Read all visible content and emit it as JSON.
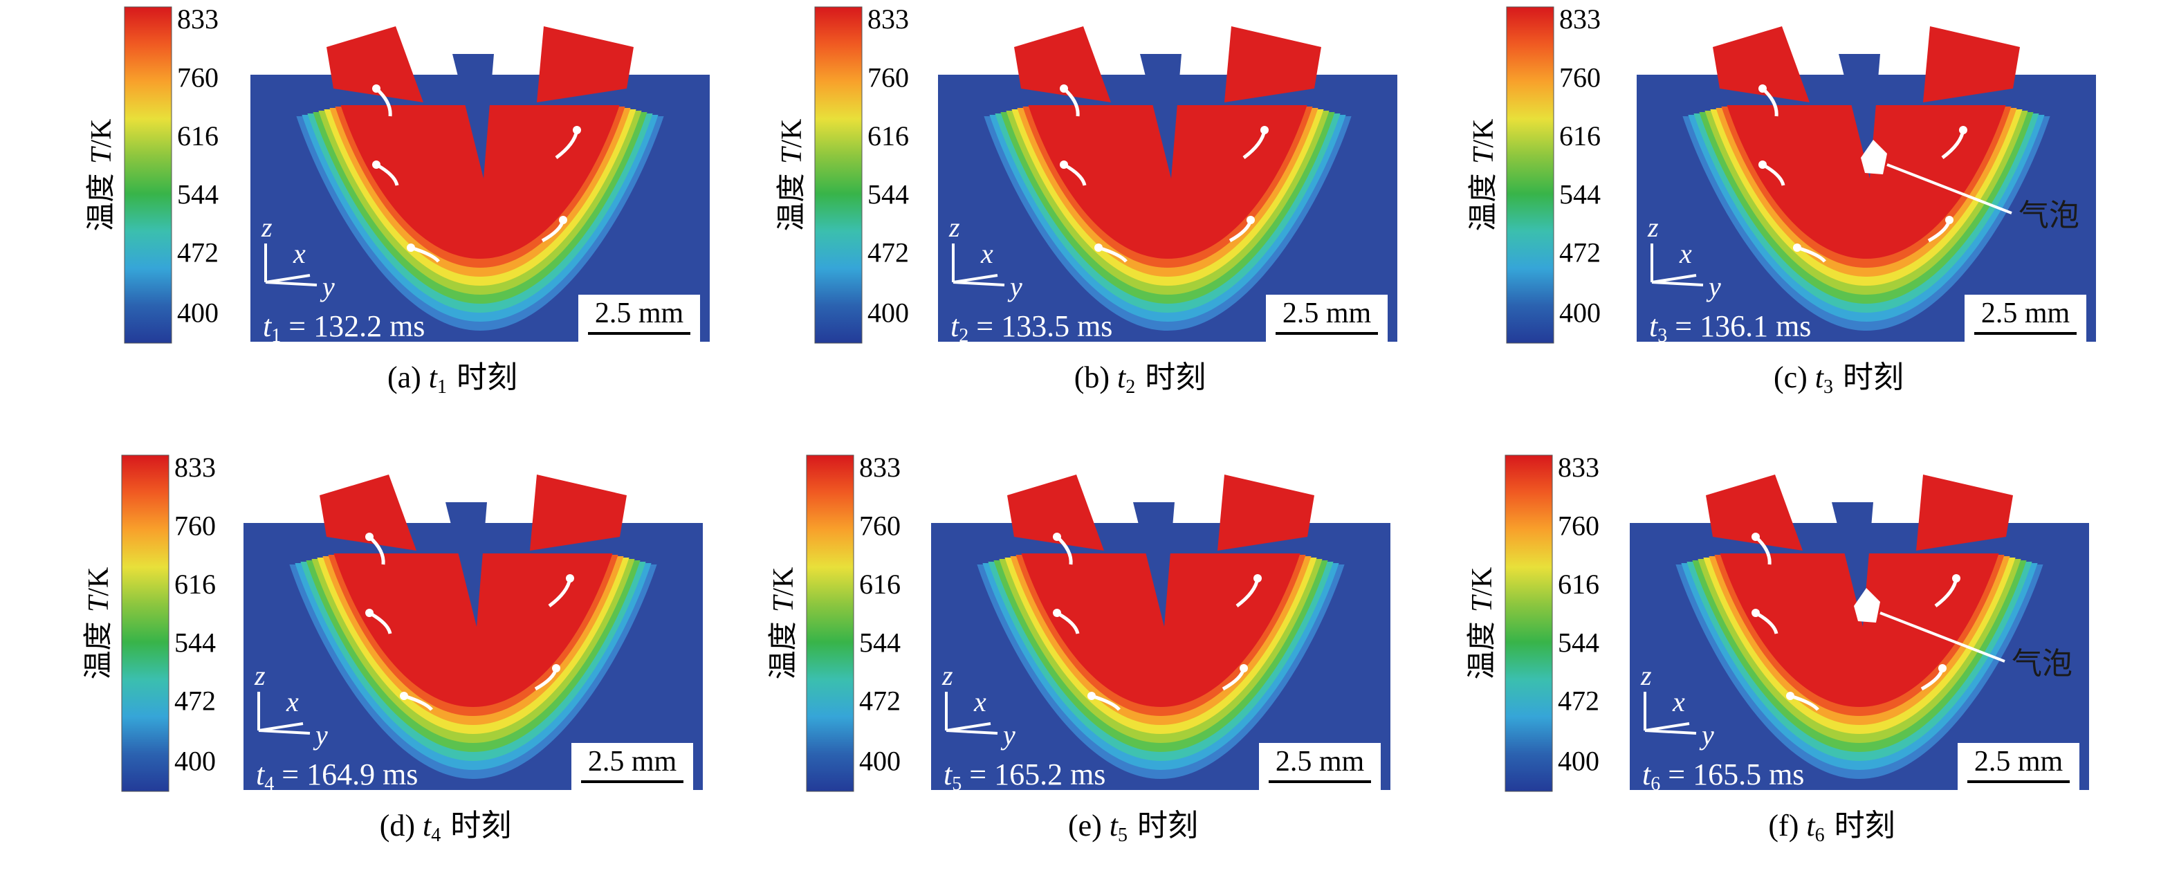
{
  "figure": {
    "colorbar_label_cn": "温度",
    "colorbar_label_symbol": "T",
    "colorbar_label_unit": "/K",
    "colorbar_ticks": [
      "833",
      "760",
      "616",
      "544",
      "472",
      "400"
    ],
    "colorbar_colors": [
      "#d7191c",
      "#f05a22",
      "#f8a12b",
      "#e8e03a",
      "#8cc63f",
      "#38b449",
      "#3bbfae",
      "#36a5d8",
      "#2b62b0",
      "#233b98"
    ],
    "scale_bar": "2.5 mm",
    "axis_z": "z",
    "axis_x": "x",
    "axis_y": "y",
    "bubble_label": "气泡",
    "equals_sign": "=",
    "time_unit": "ms",
    "time_symbol": "t"
  },
  "panels": [
    {
      "letter": "(a)",
      "index": "1",
      "time": "132.2",
      "caption_suffix": "时刻",
      "bubble": false
    },
    {
      "letter": "(b)",
      "index": "2",
      "time": "133.5",
      "caption_suffix": "时刻",
      "bubble": false
    },
    {
      "letter": "(c)",
      "index": "3",
      "time": "136.1",
      "caption_suffix": "时刻",
      "bubble": true
    },
    {
      "letter": "(d)",
      "index": "4",
      "time": "164.9",
      "caption_suffix": "时刻",
      "bubble": false
    },
    {
      "letter": "(e)",
      "index": "5",
      "time": "165.2",
      "caption_suffix": "时刻",
      "bubble": false
    },
    {
      "letter": "(f)",
      "index": "6",
      "time": "165.5",
      "caption_suffix": "时刻",
      "bubble": true
    }
  ]
}
